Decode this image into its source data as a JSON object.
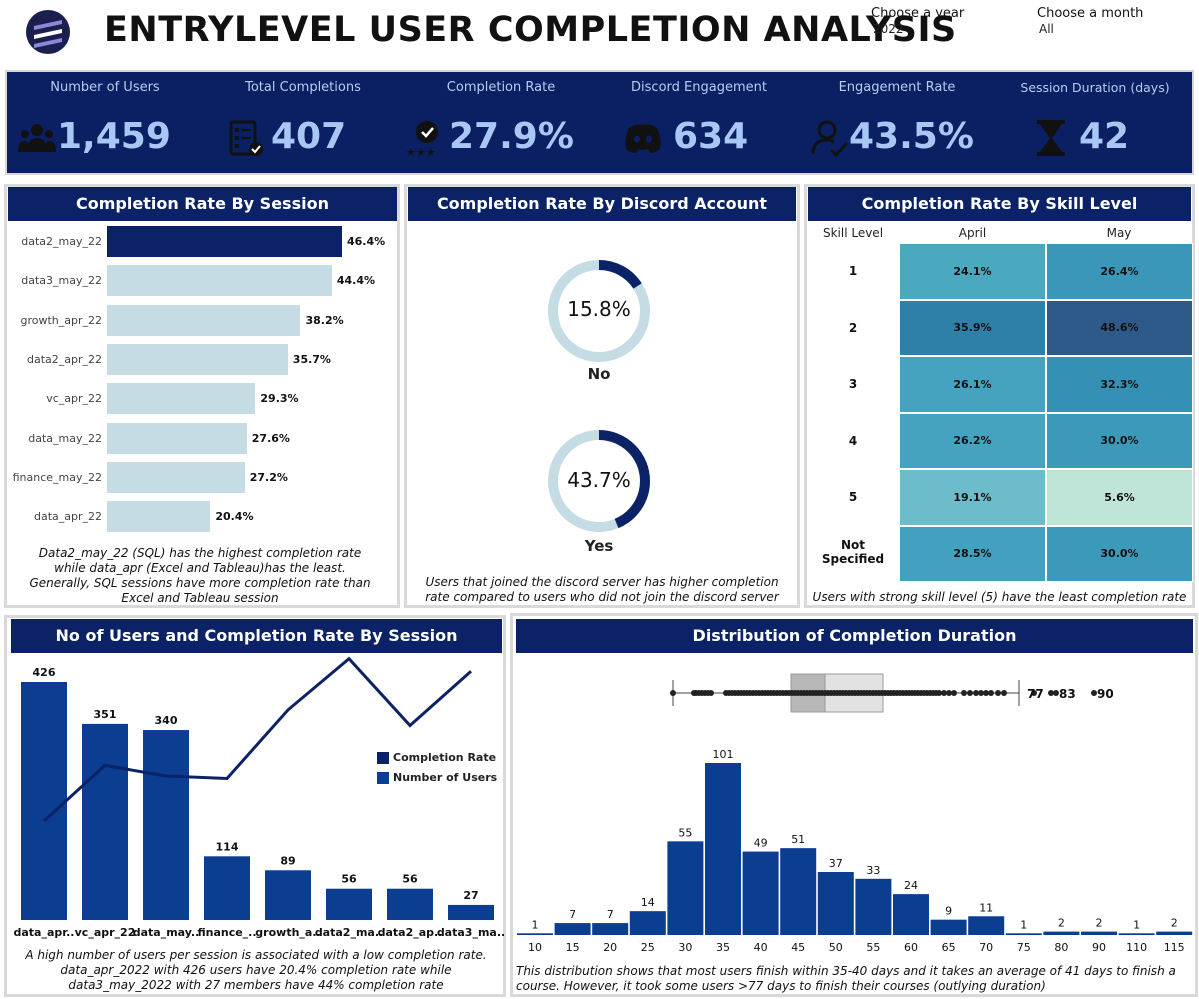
{
  "header": {
    "title": "ENTRYLEVEL USER COMPLETION ANALYSIS",
    "year_label": "Choose a year",
    "year_value": "2022",
    "month_label": "Choose a month",
    "month_value": "All"
  },
  "kpis": [
    {
      "label": "Number of Users",
      "value": "1,459",
      "icon": "users-icon"
    },
    {
      "label": "Total Completions",
      "value": "407",
      "icon": "checklist-icon"
    },
    {
      "label": "Completion Rate",
      "value": "27.9%",
      "icon": "rating-badge-icon"
    },
    {
      "label": "Discord Engagement",
      "value": "634",
      "icon": "discord-icon"
    },
    {
      "label": "Engagement Rate",
      "value": "43.5%",
      "icon": "user-check-icon"
    },
    {
      "label": "Session Duration (days)",
      "value": "42",
      "icon": "hourglass-icon"
    }
  ],
  "session_rate": {
    "title": "Completion Rate By Session",
    "caption": "Data2_may_22 (SQL) has the highest completion rate while data_apr (Excel and Tableau)has the least. Generally, SQL sessions have more completion rate than Excel and Tableau session",
    "rows": [
      {
        "label": "data2_may_22",
        "value": 46.4,
        "text": "46.4%"
      },
      {
        "label": "data3_may_22",
        "value": 44.4,
        "text": "44.4%"
      },
      {
        "label": "growth_apr_22",
        "value": 38.2,
        "text": "38.2%"
      },
      {
        "label": "data2_apr_22",
        "value": 35.7,
        "text": "35.7%"
      },
      {
        "label": "vc_apr_22",
        "value": 29.3,
        "text": "29.3%"
      },
      {
        "label": "data_may_22",
        "value": 27.6,
        "text": "27.6%"
      },
      {
        "label": "finance_may_22",
        "value": 27.2,
        "text": "27.2%"
      },
      {
        "label": "data_apr_22",
        "value": 20.4,
        "text": "20.4%"
      }
    ],
    "colors": {
      "highlight": "#0b2366",
      "normal": "#c5dce4"
    }
  },
  "discord": {
    "title": "Completion Rate By Discord Account Created",
    "caption": "Users that joined the discord server has higher completion rate compared to users who did not join the discord server",
    "no": {
      "value": 15.8,
      "text": "15.8%",
      "label": "No"
    },
    "yes": {
      "value": 43.7,
      "text": "43.7%",
      "label": "Yes"
    }
  },
  "skill": {
    "title": "Completion Rate By Skill Level",
    "caption": "Users  with strong skill level (5) have the least completion rate",
    "col_header": "Skill Level",
    "months": [
      "April",
      "May"
    ],
    "rows": [
      {
        "level": "1",
        "april": "24.1%",
        "may": "26.4%",
        "ac": "#4aa8bf",
        "mc": "#3a97b9"
      },
      {
        "level": "2",
        "april": "35.9%",
        "may": "48.6%",
        "ac": "#2e80a8",
        "mc": "#2e5a8a"
      },
      {
        "level": "3",
        "april": "26.1%",
        "may": "32.3%",
        "ac": "#45a3bf",
        "mc": "#3590b5"
      },
      {
        "level": "4",
        "april": "26.2%",
        "may": "30.0%",
        "ac": "#45a3bf",
        "mc": "#3b99ba"
      },
      {
        "level": "5",
        "april": "19.1%",
        "may": "5.6%",
        "ac": "#6cbccb",
        "mc": "#bfe5d9"
      },
      {
        "level": "Not Specified",
        "april": "28.5%",
        "may": "30.0%",
        "ac": "#41a1be",
        "mc": "#3b99ba"
      }
    ]
  },
  "users_chart": {
    "title": "No of Users and Completion Rate By Session",
    "caption": "A high number of users per session is associated with a low completion rate. data_apr_2022 with 426 users have 20.4% completion rate while data3_may_2022 with 27 members have 44% completion rate",
    "legend": [
      "Completion Rate",
      "Number of Users"
    ]
  },
  "duration": {
    "title": "Distribution of Completion Duration",
    "caption": "This distribution shows that most users finish within 35-40 days and it takes an average of 41 days to finish a course. However, it took some users >77 days to finish their courses (outlying duration)",
    "outliers": [
      "77",
      "83",
      "90"
    ]
  },
  "chart_data": [
    {
      "type": "bar",
      "title": "No of Users and Completion Rate By Session",
      "categories": [
        "data_apr..",
        "vc_apr_22",
        "data_may..",
        "finance_..",
        "growth_a..",
        "data2_ma..",
        "data2_ap..",
        "data3_ma.."
      ],
      "series": [
        {
          "name": "Number of Users",
          "values": [
            426,
            351,
            340,
            114,
            89,
            56,
            56,
            27
          ]
        },
        {
          "name": "Completion Rate",
          "values": [
            20.4,
            29.3,
            27.6,
            27.2,
            38.2,
            46.4,
            35.7,
            44.4
          ]
        }
      ],
      "colors": {
        "bars": "#0b3d91",
        "line": "#0b2366"
      }
    },
    {
      "type": "bar",
      "title": "Distribution of Completion Duration",
      "categories": [
        "10",
        "15",
        "20",
        "25",
        "30",
        "35",
        "40",
        "45",
        "50",
        "55",
        "60",
        "65",
        "70",
        "75",
        "80",
        "90",
        "110",
        "115"
      ],
      "values": [
        1,
        7,
        7,
        14,
        55,
        101,
        49,
        51,
        37,
        33,
        24,
        9,
        11,
        1,
        2,
        2,
        1,
        2
      ],
      "color": "#0b3d91"
    }
  ]
}
